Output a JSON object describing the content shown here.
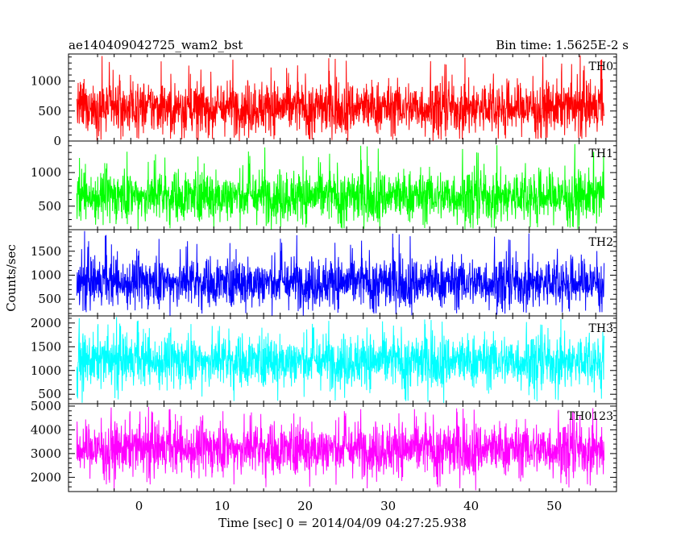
{
  "chart_data": {
    "type": "line",
    "title": "ae140409042725_wam2_bst",
    "subtitle": "Bin time: 1.5625E-2 s",
    "xlabel": "Time [sec] 0 = 2014/04/09 04:27:25.938",
    "ylabel": "Counts/sec",
    "xlim": [
      -8.5,
      57.5
    ],
    "xticks": [
      0,
      10,
      20,
      30,
      40,
      50
    ],
    "xtick_labels": [
      "0",
      "10",
      "20",
      "30",
      "40",
      "50"
    ],
    "data_x_range": [
      -7.5,
      56
    ],
    "bin_time": 0.015625,
    "grid": false,
    "legend": "none",
    "panels": [
      {
        "name": "TH0",
        "color": "#ff0000",
        "ylim": [
          0,
          1450
        ],
        "yticks": [
          0,
          500,
          1000
        ],
        "ytick_labels": [
          "0",
          "500",
          "1000"
        ],
        "mean": 560,
        "envelope_low": 60,
        "envelope_high": 1080,
        "spike_max": 1450,
        "spike_min": 0
      },
      {
        "name": "TH1",
        "color": "#00ff00",
        "ylim": [
          150,
          1470
        ],
        "yticks": [
          500,
          1000
        ],
        "ytick_labels": [
          "500",
          "1000"
        ],
        "mean": 650,
        "envelope_low": 200,
        "envelope_high": 1100,
        "spike_max": 1470,
        "spike_min": 150
      },
      {
        "name": "TH2",
        "color": "#0000ff",
        "ylim": [
          150,
          1950
        ],
        "yticks": [
          500,
          1000,
          1500
        ],
        "ytick_labels": [
          "500",
          "1000",
          "1500"
        ],
        "mean": 850,
        "envelope_low": 280,
        "envelope_high": 1500,
        "spike_max": 1950,
        "spike_min": 150
      },
      {
        "name": "TH3",
        "color": "#00ffff",
        "ylim": [
          300,
          2150
        ],
        "yticks": [
          500,
          1000,
          1500,
          2000
        ],
        "ytick_labels": [
          "500",
          "1000",
          "1500",
          "2000"
        ],
        "mean": 1200,
        "envelope_low": 450,
        "envelope_high": 1750,
        "spike_max": 2150,
        "spike_min": 300
      },
      {
        "name": "TH0123",
        "color": "#ff00ff",
        "ylim": [
          1400,
          5100
        ],
        "yticks": [
          2000,
          3000,
          4000,
          5000
        ],
        "ytick_labels": [
          "2000",
          "3000",
          "4000",
          "5000"
        ],
        "mean": 3200,
        "envelope_low": 1900,
        "envelope_high": 4500,
        "spike_max": 5000,
        "spike_min": 1400
      }
    ]
  }
}
